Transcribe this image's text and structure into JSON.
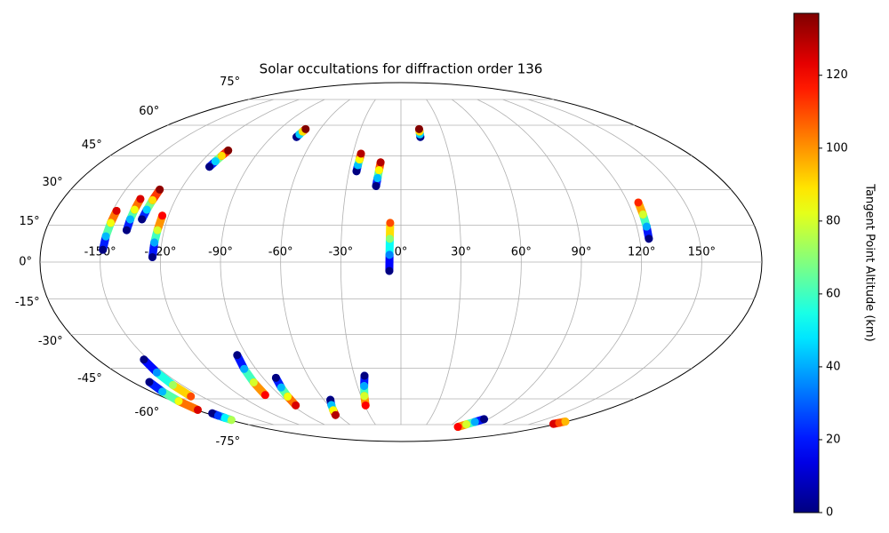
{
  "chart_data": {
    "type": "scatter",
    "projection": "mollweide",
    "title": "Solar occultations for diffraction order 136",
    "colormap": "jet",
    "grid": true,
    "xticks": [
      {
        "value": -150,
        "label": "-150°"
      },
      {
        "value": -120,
        "label": "-120°"
      },
      {
        "value": -90,
        "label": "-90°"
      },
      {
        "value": -60,
        "label": "-60°"
      },
      {
        "value": -30,
        "label": "-30°"
      },
      {
        "value": 0,
        "label": "0°"
      },
      {
        "value": 30,
        "label": "30°"
      },
      {
        "value": 60,
        "label": "60°"
      },
      {
        "value": 90,
        "label": "90°"
      },
      {
        "value": 120,
        "label": "120°"
      },
      {
        "value": 150,
        "label": "150°"
      }
    ],
    "yticks": [
      {
        "value": -75,
        "label": "-75°"
      },
      {
        "value": -60,
        "label": "-60°"
      },
      {
        "value": -45,
        "label": "-45°"
      },
      {
        "value": -30,
        "label": "-30°"
      },
      {
        "value": -15,
        "label": "-15°"
      },
      {
        "value": 0,
        "label": "0°"
      },
      {
        "value": 15,
        "label": "15°"
      },
      {
        "value": 30,
        "label": "30°"
      },
      {
        "value": 45,
        "label": "45°"
      },
      {
        "value": 60,
        "label": "60°"
      },
      {
        "value": 75,
        "label": "75°"
      }
    ],
    "colorbar": {
      "label": "Tangent Point Altitude (km)",
      "lim": [
        0,
        137
      ],
      "ticks": [
        0,
        20,
        40,
        60,
        80,
        100,
        120
      ]
    },
    "tracks": [
      {
        "x": [
          -149,
          -148.7,
          -148.3,
          -148
        ],
        "y": [
          5,
          10.5,
          16,
          21
        ],
        "values": [
          0,
          42,
          84,
          125
        ]
      },
      {
        "x": [
          -139,
          -139,
          -138.9,
          -138.8
        ],
        "y": [
          13,
          17.5,
          21.5,
          26
        ],
        "values": [
          0,
          42,
          84,
          125
        ]
      },
      {
        "x": [
          -133,
          -132.5,
          -132,
          -131.5
        ],
        "y": [
          17.5,
          21.5,
          25.5,
          30
        ],
        "values": [
          0,
          45,
          90,
          135
        ]
      },
      {
        "x": [
          -124,
          -123.7,
          -123.4,
          -123.2
        ],
        "y": [
          2,
          8,
          13,
          19
        ],
        "values": [
          0,
          40,
          80,
          120
        ]
      },
      {
        "x": [
          -112.7,
          -111.8,
          -110.9,
          -110
        ],
        "y": [
          40,
          42.5,
          45,
          47.5
        ],
        "values": [
          0,
          45,
          90,
          137
        ]
      },
      {
        "x": [
          -72.6,
          -72,
          -71.4,
          -70.8
        ],
        "y": [
          54,
          55.3,
          56.7,
          58
        ],
        "values": [
          0,
          45,
          90,
          137
        ]
      },
      {
        "x": [
          -25.7,
          -25.5,
          -25.2,
          -25
        ],
        "y": [
          38,
          40.7,
          43.3,
          46
        ],
        "values": [
          0,
          43,
          86,
          130
        ]
      },
      {
        "x": [
          -13.7,
          -13.2,
          -12.7,
          -12.2
        ],
        "y": [
          31.5,
          35,
          38.5,
          42
        ],
        "values": [
          0,
          43,
          86,
          130
        ]
      },
      {
        "x": [
          13.5,
          13.5,
          13.5,
          13.5
        ],
        "y": [
          54,
          55.3,
          56.7,
          58
        ],
        "values": [
          0,
          45,
          90,
          137
        ]
      },
      {
        "x": [
          -5.8,
          -5.7,
          -5.6,
          -5.5
        ],
        "y": [
          -3.6,
          3,
          9.5,
          16
        ],
        "values": [
          0,
          35,
          70,
          110
        ]
      },
      {
        "x": [
          124.7,
          125,
          125.2,
          125.5
        ],
        "y": [
          9.5,
          14.5,
          19.5,
          24.5
        ],
        "values": [
          0,
          40,
          80,
          115
        ]
      },
      {
        "x": [
          -152.7,
          -154.5,
          -156.2,
          -158
        ],
        "y": [
          -41,
          -47,
          -53,
          -58.7
        ],
        "values": [
          0,
          37,
          73,
          110
        ]
      },
      {
        "x": [
          -168.7,
          -172,
          -175.4,
          -178.7
        ],
        "y": [
          -51.5,
          -56.3,
          -61.2,
          -66
        ],
        "values": [
          0,
          42,
          84,
          125
        ]
      },
      {
        "x": [
          -175,
          -176,
          -177,
          -178
        ],
        "y": [
          -68,
          -69.3,
          -70.7,
          -72
        ],
        "values": [
          0,
          25,
          50,
          75
        ]
      },
      {
        "x": [
          -95.5,
          -97.3,
          -99,
          -100.8
        ],
        "y": [
          -39,
          -45.3,
          -51.7,
          -58
        ],
        "values": [
          0,
          40,
          80,
          120
        ]
      },
      {
        "x": [
          -81.6,
          -83.5,
          -85.3,
          -87.2
        ],
        "y": [
          -49.5,
          -54.2,
          -58.8,
          -63.5
        ],
        "values": [
          0,
          42,
          84,
          125
        ]
      },
      {
        "x": [
          -54.9,
          -57.4,
          -59.9,
          -62.4
        ],
        "y": [
          -60.5,
          -63.3,
          -66.2,
          -69
        ],
        "values": [
          0,
          43,
          86,
          130
        ]
      },
      {
        "x": [
          -23.5,
          -25.4,
          -27.4,
          -29.3
        ],
        "y": [
          -48.5,
          -53.5,
          -58.5,
          -63.5
        ],
        "values": [
          0,
          40,
          80,
          120
        ]
      },
      {
        "x": [
          85.8,
          81.1,
          76.5,
          71.8
        ],
        "y": [
          -71.5,
          -73.2,
          -74.8,
          -76.5
        ],
        "values": [
          0,
          40,
          80,
          120
        ]
      },
      {
        "x": [
          176,
          177.5,
          179
        ],
        "y": [
          -74.5,
          -73.8,
          -73
        ],
        "values": [
          125,
          110,
          95
        ]
      }
    ]
  }
}
